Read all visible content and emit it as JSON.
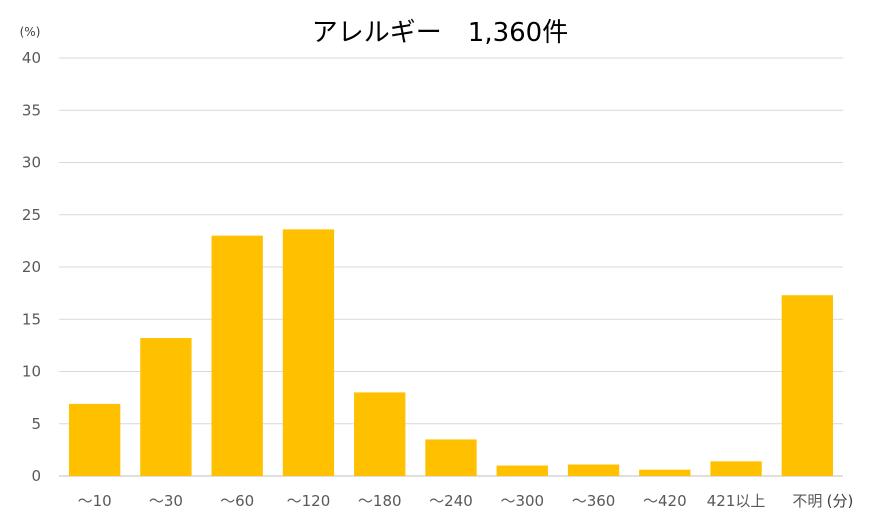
{
  "chart_data": {
    "type": "bar",
    "title": "アレルギー　1,360件",
    "ylabel": "(%)",
    "xlabel": "(分)",
    "categories": [
      "～10",
      "～30",
      "～60",
      "～120",
      "～180",
      "～240",
      "～300",
      "～360",
      "～420",
      "421以上",
      "不明"
    ],
    "values": [
      6.9,
      13.2,
      23.0,
      23.6,
      8.0,
      3.5,
      1.0,
      1.1,
      0.6,
      1.4,
      17.3
    ],
    "ylim": [
      0,
      40
    ],
    "yticks": [
      0,
      5,
      10,
      15,
      20,
      25,
      30,
      35,
      40
    ],
    "grid": true,
    "legend": "none",
    "bar_color": "#FFC000",
    "grid_color": "#D9D9D9"
  }
}
